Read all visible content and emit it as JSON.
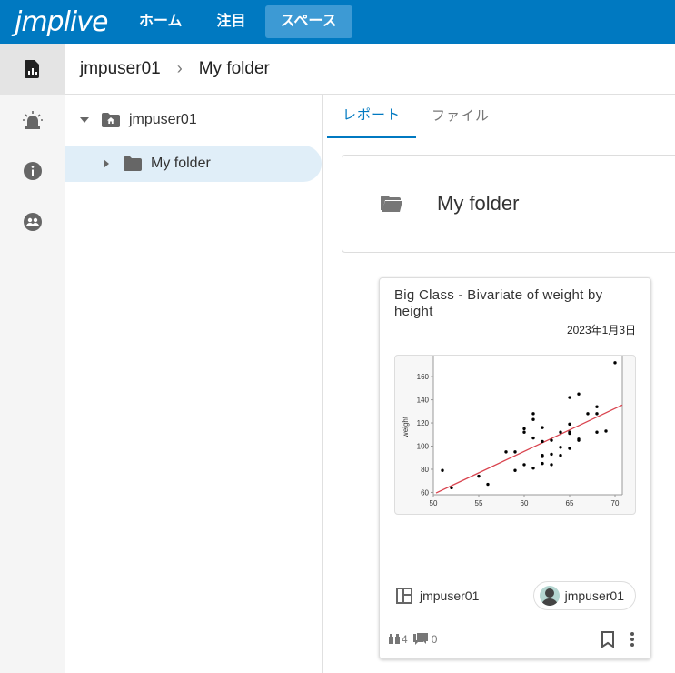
{
  "header": {
    "logo": "jmplive",
    "nav": [
      {
        "label": "ホーム"
      },
      {
        "label": "注目"
      },
      {
        "label": "スペース",
        "active": true
      }
    ],
    "color": "#0079c1"
  },
  "rail": {
    "items": [
      {
        "icon": "report-icon",
        "active": true
      },
      {
        "icon": "alert-icon"
      },
      {
        "icon": "info-icon"
      },
      {
        "icon": "groups-icon"
      }
    ]
  },
  "breadcrumb": {
    "items": [
      "jmpuser01",
      "My folder"
    ]
  },
  "tree": {
    "root": "jmpuser01",
    "child": "My folder"
  },
  "tabs": [
    {
      "label": "レポート",
      "active": true
    },
    {
      "label": "ファイル"
    }
  ],
  "folder": {
    "title": "My folder"
  },
  "report": {
    "title": "Big Class - Bivariate of weight by height",
    "date": "2023年1月3日",
    "owner": "jmpuser01",
    "publisher": "jmpuser01",
    "views": "4",
    "comments": "0"
  },
  "chart_data": {
    "type": "scatter",
    "xlabel": "",
    "ylabel": "weight",
    "xlim": [
      50,
      70.8
    ],
    "ylim": [
      58,
      175
    ],
    "xticks": [
      50,
      55,
      60,
      65,
      70
    ],
    "yticks": [
      60,
      80,
      100,
      120,
      140,
      160
    ],
    "points": [
      [
        51,
        79
      ],
      [
        52,
        64
      ],
      [
        55,
        74
      ],
      [
        56,
        67
      ],
      [
        58,
        95
      ],
      [
        59,
        95
      ],
      [
        59,
        79
      ],
      [
        60,
        115
      ],
      [
        60,
        112
      ],
      [
        60,
        84
      ],
      [
        61,
        128
      ],
      [
        61,
        123
      ],
      [
        61,
        107
      ],
      [
        61,
        81
      ],
      [
        62,
        116
      ],
      [
        62,
        104
      ],
      [
        62,
        92
      ],
      [
        62,
        91
      ],
      [
        62,
        85
      ],
      [
        63,
        105
      ],
      [
        63,
        93
      ],
      [
        63,
        84
      ],
      [
        64,
        112
      ],
      [
        64,
        99
      ],
      [
        64,
        92
      ],
      [
        65,
        142
      ],
      [
        65,
        119
      ],
      [
        65,
        112
      ],
      [
        65,
        111
      ],
      [
        65,
        98
      ],
      [
        66,
        145
      ],
      [
        66,
        106
      ],
      [
        66,
        105
      ],
      [
        67,
        128
      ],
      [
        68,
        134
      ],
      [
        68,
        128
      ],
      [
        68,
        112
      ],
      [
        69,
        113
      ],
      [
        70,
        172
      ]
    ],
    "fit_line": [
      [
        50.3,
        59.5
      ],
      [
        70.8,
        135.5
      ]
    ],
    "point_color": "#000000",
    "line_color": "#d9434e"
  }
}
